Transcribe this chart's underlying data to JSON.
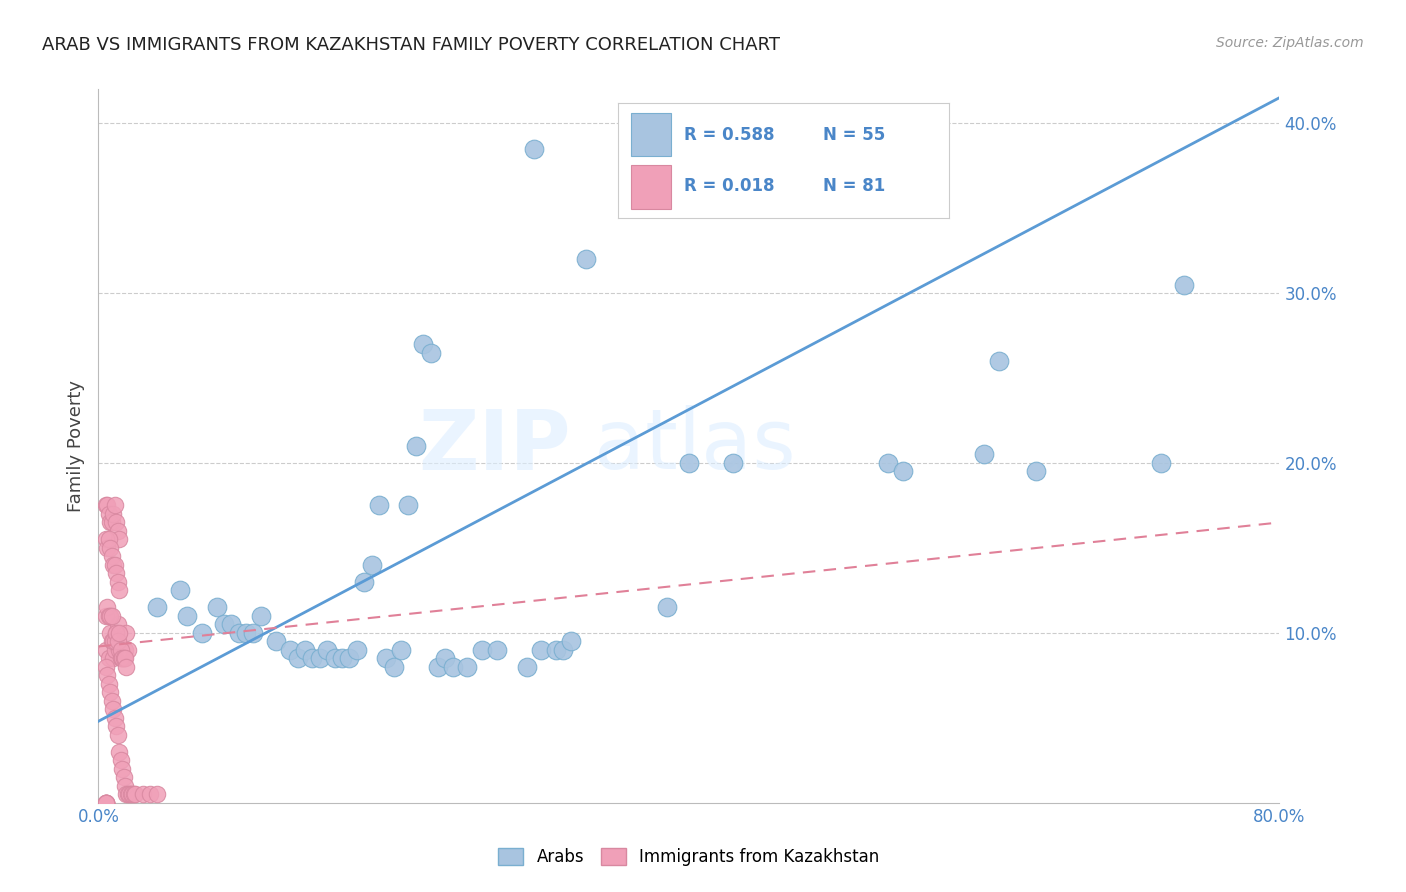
{
  "title": "ARAB VS IMMIGRANTS FROM KAZAKHSTAN FAMILY POVERTY CORRELATION CHART",
  "source": "Source: ZipAtlas.com",
  "ylabel": "Family Poverty",
  "blue_color": "#a8c4e0",
  "blue_edge": "#7aafd0",
  "pink_color": "#f0a0b8",
  "pink_edge": "#d888a0",
  "line_blue": "#5b9bd5",
  "line_pink": "#e08098",
  "xmin": 0.0,
  "xmax": 0.8,
  "ymin": 0.0,
  "ymax": 0.42,
  "xticks": [
    0.0,
    0.8
  ],
  "xtick_labels": [
    "0.0%",
    "80.0%"
  ],
  "yticks": [
    0.1,
    0.2,
    0.3,
    0.4
  ],
  "ytick_labels": [
    "10.0%",
    "20.0%",
    "30.0%",
    "40.0%"
  ],
  "blue_trendline_x": [
    0.0,
    0.8
  ],
  "blue_trendline_y": [
    0.048,
    0.415
  ],
  "pink_trendline_x": [
    0.0,
    0.8
  ],
  "pink_trendline_y": [
    0.092,
    0.165
  ],
  "blue_x": [
    0.04,
    0.055,
    0.06,
    0.07,
    0.08,
    0.085,
    0.09,
    0.095,
    0.1,
    0.105,
    0.11,
    0.12,
    0.13,
    0.135,
    0.14,
    0.145,
    0.15,
    0.155,
    0.16,
    0.165,
    0.17,
    0.175,
    0.18,
    0.185,
    0.19,
    0.195,
    0.2,
    0.205,
    0.21,
    0.215,
    0.22,
    0.225,
    0.23,
    0.235,
    0.24,
    0.25,
    0.26,
    0.27,
    0.29,
    0.3,
    0.31,
    0.315,
    0.32,
    0.385,
    0.4,
    0.43,
    0.535,
    0.545,
    0.6,
    0.61,
    0.635,
    0.72,
    0.735,
    0.295,
    0.33
  ],
  "blue_y": [
    0.115,
    0.125,
    0.11,
    0.1,
    0.115,
    0.105,
    0.105,
    0.1,
    0.1,
    0.1,
    0.11,
    0.095,
    0.09,
    0.085,
    0.09,
    0.085,
    0.085,
    0.09,
    0.085,
    0.085,
    0.085,
    0.09,
    0.13,
    0.14,
    0.175,
    0.085,
    0.08,
    0.09,
    0.175,
    0.21,
    0.27,
    0.265,
    0.08,
    0.085,
    0.08,
    0.08,
    0.09,
    0.09,
    0.08,
    0.09,
    0.09,
    0.09,
    0.095,
    0.115,
    0.2,
    0.2,
    0.2,
    0.195,
    0.205,
    0.26,
    0.195,
    0.2,
    0.305,
    0.385,
    0.32
  ],
  "pink_x": [
    0.005,
    0.007,
    0.008,
    0.009,
    0.01,
    0.011,
    0.012,
    0.013,
    0.014,
    0.015,
    0.016,
    0.017,
    0.018,
    0.019,
    0.02,
    0.005,
    0.006,
    0.007,
    0.008,
    0.009,
    0.01,
    0.011,
    0.012,
    0.013,
    0.014,
    0.015,
    0.016,
    0.017,
    0.018,
    0.019,
    0.005,
    0.006,
    0.007,
    0.008,
    0.009,
    0.01,
    0.011,
    0.012,
    0.013,
    0.014,
    0.005,
    0.006,
    0.007,
    0.008,
    0.009,
    0.01,
    0.011,
    0.012,
    0.013,
    0.014,
    0.005,
    0.006,
    0.007,
    0.008,
    0.009,
    0.01,
    0.011,
    0.012,
    0.013,
    0.014,
    0.015,
    0.016,
    0.017,
    0.018,
    0.019,
    0.02,
    0.021,
    0.022,
    0.023,
    0.024,
    0.025,
    0.03,
    0.035,
    0.04,
    0.005,
    0.005,
    0.005,
    0.005,
    0.005,
    0.005,
    0.005
  ],
  "pink_y": [
    0.09,
    0.085,
    0.1,
    0.095,
    0.085,
    0.09,
    0.1,
    0.105,
    0.09,
    0.085,
    0.085,
    0.085,
    0.09,
    0.1,
    0.09,
    0.11,
    0.115,
    0.11,
    0.11,
    0.11,
    0.095,
    0.095,
    0.1,
    0.095,
    0.1,
    0.09,
    0.085,
    0.085,
    0.085,
    0.08,
    0.175,
    0.175,
    0.17,
    0.165,
    0.165,
    0.17,
    0.175,
    0.165,
    0.16,
    0.155,
    0.155,
    0.15,
    0.155,
    0.15,
    0.145,
    0.14,
    0.14,
    0.135,
    0.13,
    0.125,
    0.08,
    0.075,
    0.07,
    0.065,
    0.06,
    0.055,
    0.05,
    0.045,
    0.04,
    0.03,
    0.025,
    0.02,
    0.015,
    0.01,
    0.005,
    0.005,
    0.005,
    0.005,
    0.005,
    0.005,
    0.005,
    0.005,
    0.005,
    0.005,
    0.0,
    0.0,
    0.0,
    0.0,
    0.0,
    0.0,
    0.0
  ]
}
